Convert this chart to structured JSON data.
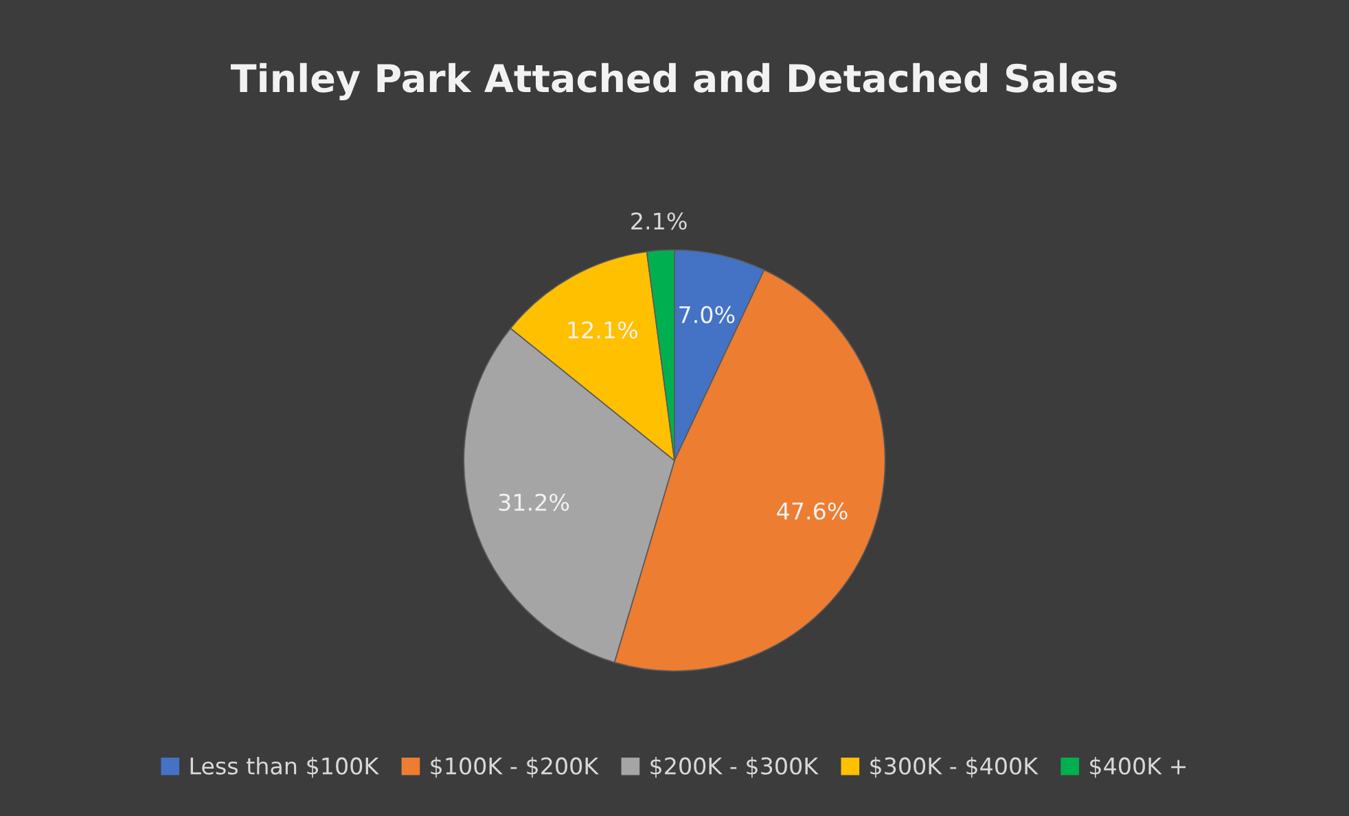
{
  "chart_data": {
    "type": "pie",
    "title": "Tinley Park Attached and Detached Sales",
    "categories": [
      "Less than $100K",
      "$100K - $200K",
      "$200K - $300K",
      "$300K - $400K",
      "$400K +"
    ],
    "values": [
      7.0,
      47.6,
      31.2,
      12.1,
      2.1
    ],
    "colors": [
      "#4472c4",
      "#ed7d31",
      "#a5a5a5",
      "#ffc000",
      "#00b050"
    ],
    "value_labels": [
      "7.0%",
      "47.6%",
      "31.2%",
      "12.1%",
      "2.1%"
    ],
    "legend": "bottom"
  }
}
